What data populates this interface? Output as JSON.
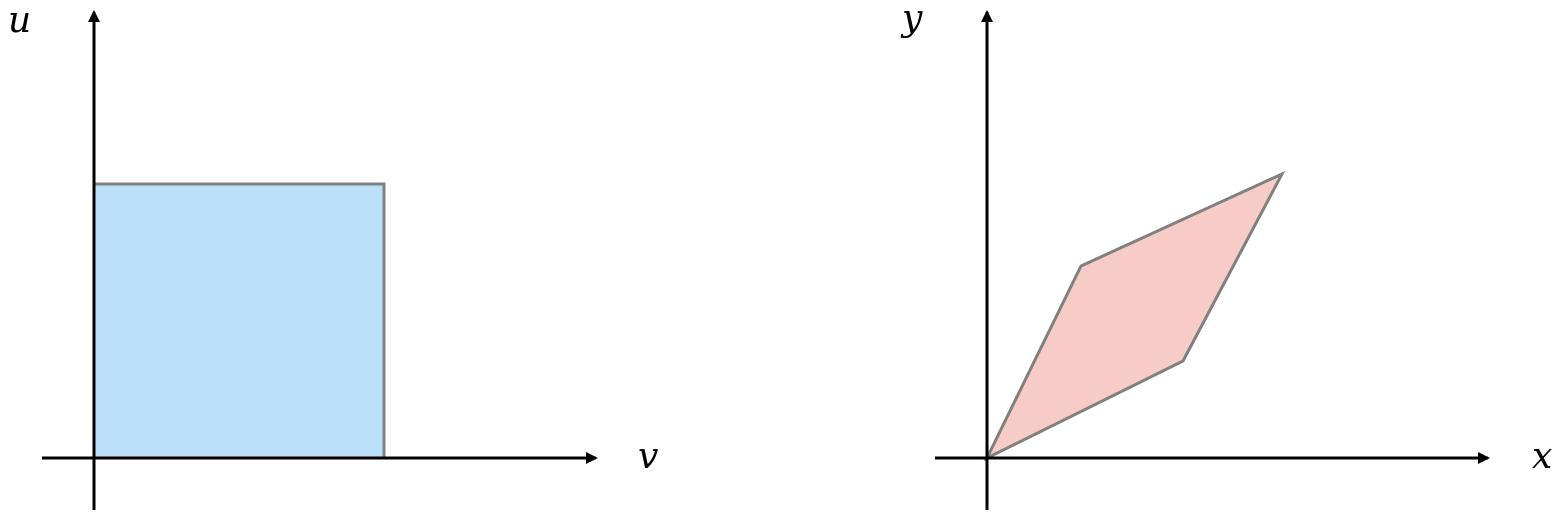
{
  "diagram": {
    "left_panel": {
      "vertical_axis_label": "u",
      "horizontal_axis_label": "v",
      "region_shape": "rectangle",
      "region_fill": "#bbdff9",
      "region_stroke": "#808080"
    },
    "right_panel": {
      "vertical_axis_label": "y",
      "horizontal_axis_label": "x",
      "region_shape": "parallelogram",
      "region_fill": "#f7ccc6",
      "region_stroke": "#808080"
    },
    "axis_color": "#000000"
  }
}
